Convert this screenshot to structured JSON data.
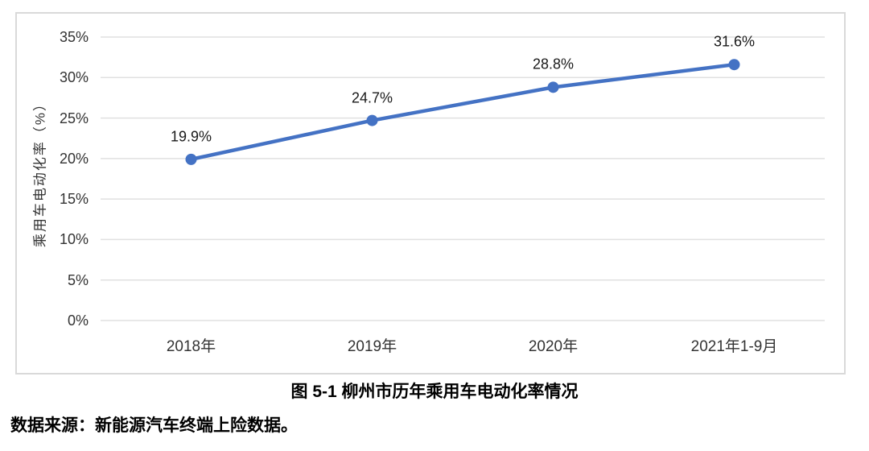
{
  "figure": {
    "caption": "图 5-1 柳州市历年乘用车电动化率情况",
    "source": "数据来源：新能源汽车终端上险数据。"
  },
  "chart_data": {
    "type": "line",
    "title": "图 5-1 柳州市历年乘用车电动化率情况",
    "categories": [
      "2018年",
      "2019年",
      "2020年",
      "2021年1-9月"
    ],
    "values": [
      19.9,
      24.7,
      28.8,
      31.6
    ],
    "data_labels": [
      "19.9%",
      "24.7%",
      "28.8%",
      "31.6%"
    ],
    "xlabel": "",
    "ylabel": "乘用车电动化率（%）",
    "ylim": [
      0,
      35
    ],
    "ytick_step": 5,
    "ytick_labels": [
      "0%",
      "5%",
      "10%",
      "15%",
      "20%",
      "25%",
      "30%",
      "35%"
    ],
    "grid": true,
    "legend": "none",
    "line_color": "#4472C4",
    "grid_color": "#E0E0E0",
    "frame_color": "#D9D9D9"
  }
}
